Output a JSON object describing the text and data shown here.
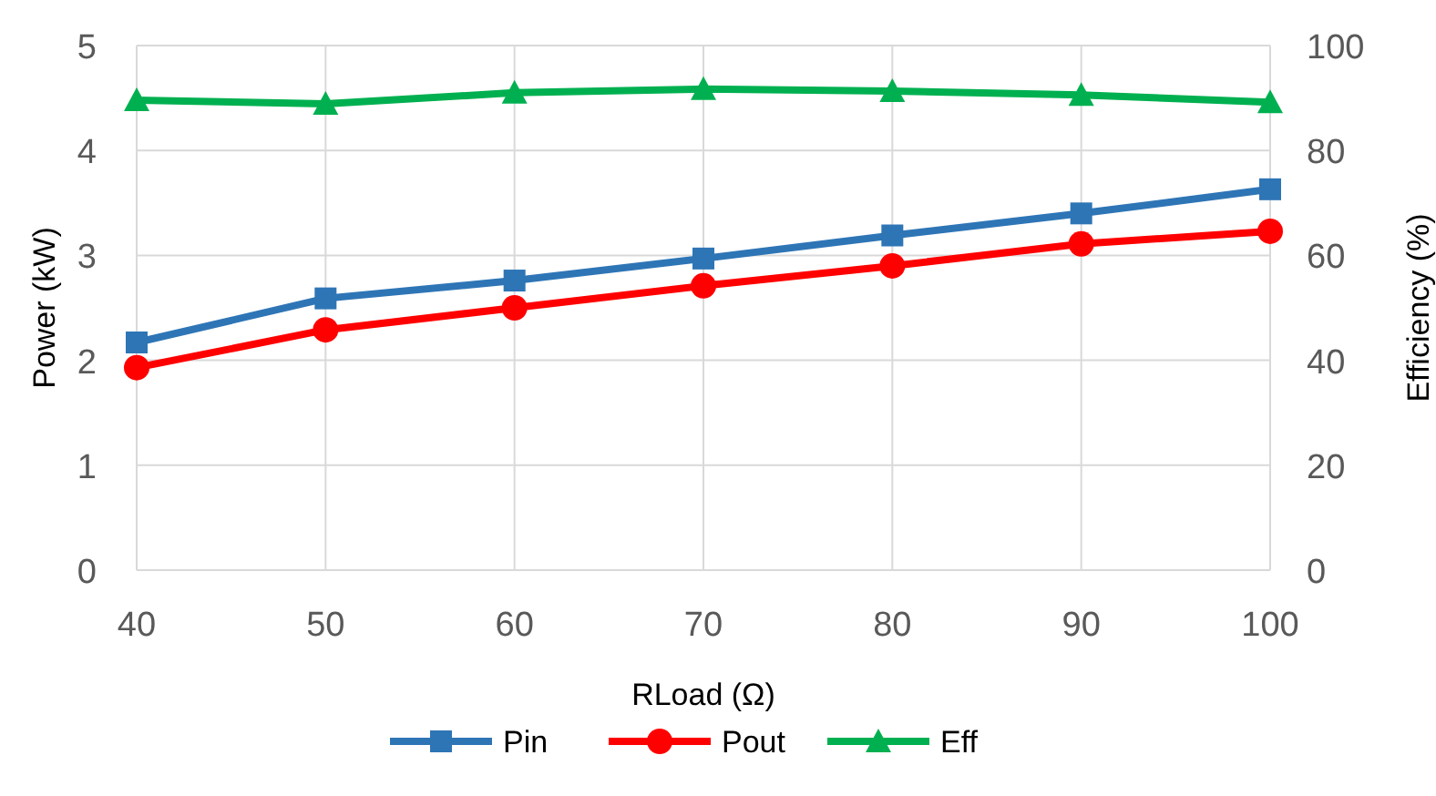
{
  "chart_data": {
    "type": "line",
    "xlabel": "RLoad (Ω)",
    "ylabel": "Power (kW)",
    "y2label": "Efficiency (%)",
    "x": [
      40,
      50,
      60,
      70,
      80,
      90,
      100
    ],
    "xlim": [
      40,
      100
    ],
    "xticks": [
      40,
      50,
      60,
      70,
      80,
      90,
      100
    ],
    "ylim": [
      0,
      5
    ],
    "yticks": [
      0,
      1,
      2,
      3,
      4,
      5
    ],
    "y2lim": [
      0,
      100
    ],
    "y2ticks": [
      0,
      20,
      40,
      60,
      80,
      100
    ],
    "grid": true,
    "legend": "bottom",
    "line_style": "solid",
    "series": [
      {
        "name": "Pin",
        "color": "#2e75b6",
        "marker": "square",
        "values": [
          2.17,
          2.59,
          2.76,
          2.97,
          3.19,
          3.4,
          3.63
        ]
      },
      {
        "name": "Pout",
        "color": "#ff0000",
        "marker": "circle",
        "values": [
          1.93,
          2.29,
          2.5,
          2.71,
          2.9,
          3.11,
          3.23
        ]
      },
      {
        "name": "Eff",
        "color": "#00b050",
        "marker": "triangle",
        "axis": "y2",
        "values": [
          89.6,
          88.9,
          91.0,
          91.7,
          91.3,
          90.6,
          89.2
        ]
      }
    ]
  }
}
